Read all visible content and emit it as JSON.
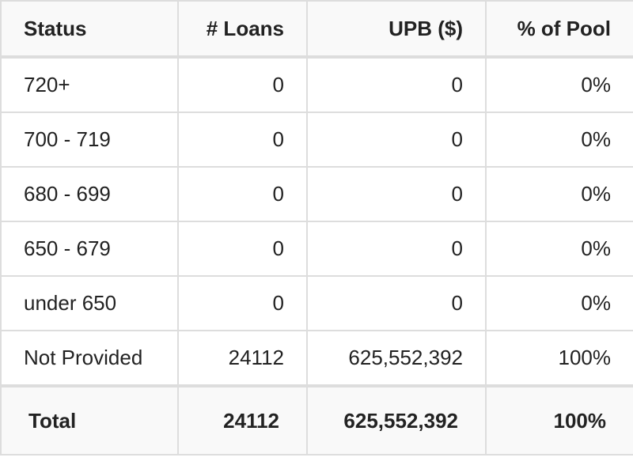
{
  "table": {
    "header": [
      "Status",
      "# Loans",
      "UPB ($)",
      "% of Pool"
    ],
    "rows": [
      [
        "720+",
        "0",
        "0",
        "0%"
      ],
      [
        "700 - 719",
        "0",
        "0",
        "0%"
      ],
      [
        "680 - 699",
        "0",
        "0",
        "0%"
      ],
      [
        "650 - 679",
        "0",
        "0",
        "0%"
      ],
      [
        "under 650",
        "0",
        "0",
        "0%"
      ],
      [
        "Not Provided",
        "24112",
        "625,552,392",
        "100%"
      ]
    ],
    "total": [
      "Total",
      "24112",
      "625,552,392",
      "100%"
    ]
  }
}
